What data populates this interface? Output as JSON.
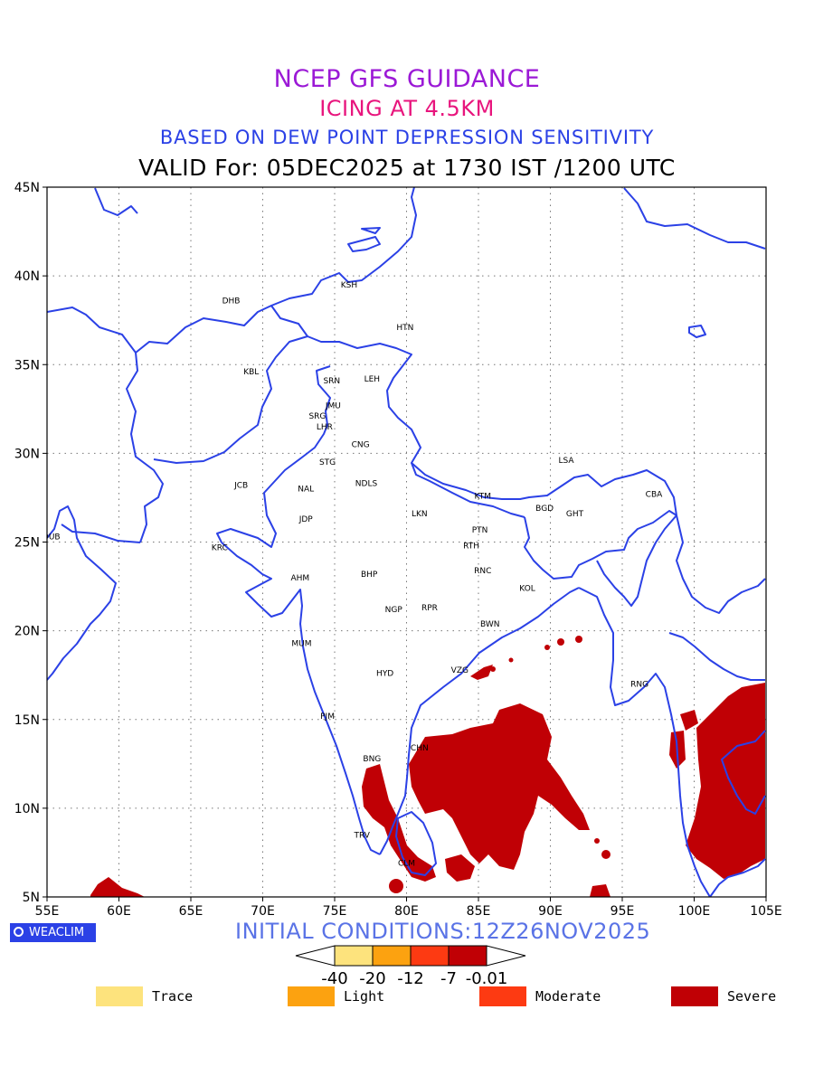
{
  "titles": {
    "line1": "NCEP GFS GUIDANCE",
    "line2": "ICING AT 4.5KM",
    "line3": "BASED ON DEW POINT DEPRESSION SENSITIVITY",
    "line4": "VALID For: 05DEC2025 at 1730 IST /1200 UTC"
  },
  "map": {
    "lon_ticks": [
      "55E",
      "60E",
      "65E",
      "70E",
      "75E",
      "80E",
      "85E",
      "90E",
      "95E",
      "100E",
      "105E"
    ],
    "lat_ticks": [
      "45N",
      "40N",
      "35N",
      "30N",
      "25N",
      "20N",
      "15N",
      "10N",
      "5N"
    ],
    "stations": [
      {
        "code": "KSH",
        "lon": 76.0,
        "lat": 39.5
      },
      {
        "code": "DHB",
        "lon": 67.8,
        "lat": 38.6
      },
      {
        "code": "HTN",
        "lon": 79.9,
        "lat": 37.1
      },
      {
        "code": "KBL",
        "lon": 69.2,
        "lat": 34.6
      },
      {
        "code": "SRN",
        "lon": 74.8,
        "lat": 34.1
      },
      {
        "code": "LEH",
        "lon": 77.6,
        "lat": 34.2
      },
      {
        "code": "JMU",
        "lon": 74.9,
        "lat": 32.7
      },
      {
        "code": "SRG",
        "lon": 73.8,
        "lat": 32.1
      },
      {
        "code": "LHR",
        "lon": 74.3,
        "lat": 31.5
      },
      {
        "code": "CNG",
        "lon": 76.8,
        "lat": 30.5
      },
      {
        "code": "STG",
        "lon": 74.5,
        "lat": 29.5
      },
      {
        "code": "JCB",
        "lon": 68.5,
        "lat": 28.2
      },
      {
        "code": "NAL",
        "lon": 73.0,
        "lat": 28.0
      },
      {
        "code": "NDLS",
        "lon": 77.2,
        "lat": 28.3
      },
      {
        "code": "LSA",
        "lon": 91.1,
        "lat": 29.6
      },
      {
        "code": "CBA",
        "lon": 97.2,
        "lat": 27.7
      },
      {
        "code": "KTM",
        "lon": 85.3,
        "lat": 27.6
      },
      {
        "code": "BGD",
        "lon": 89.6,
        "lat": 26.9
      },
      {
        "code": "GHT",
        "lon": 91.7,
        "lat": 26.6
      },
      {
        "code": "JDP",
        "lon": 73.0,
        "lat": 26.3
      },
      {
        "code": "LKN",
        "lon": 80.9,
        "lat": 26.6
      },
      {
        "code": "PTN",
        "lon": 85.1,
        "lat": 25.7
      },
      {
        "code": "DUB",
        "lon": 55.3,
        "lat": 25.3
      },
      {
        "code": "RTH",
        "lon": 84.5,
        "lat": 24.8
      },
      {
        "code": "KRC",
        "lon": 67.0,
        "lat": 24.7
      },
      {
        "code": "AHM",
        "lon": 72.6,
        "lat": 23.0
      },
      {
        "code": "BHP",
        "lon": 77.4,
        "lat": 23.2
      },
      {
        "code": "RNC",
        "lon": 85.3,
        "lat": 23.4
      },
      {
        "code": "KOL",
        "lon": 88.4,
        "lat": 22.4
      },
      {
        "code": "NGP",
        "lon": 79.1,
        "lat": 21.2
      },
      {
        "code": "RPR",
        "lon": 81.6,
        "lat": 21.3
      },
      {
        "code": "BWN",
        "lon": 85.8,
        "lat": 20.4
      },
      {
        "code": "MUM",
        "lon": 72.7,
        "lat": 19.3
      },
      {
        "code": "HYD",
        "lon": 78.5,
        "lat": 17.6
      },
      {
        "code": "VZG",
        "lon": 83.7,
        "lat": 17.8
      },
      {
        "code": "RNG",
        "lon": 96.2,
        "lat": 17.0
      },
      {
        "code": "PJM",
        "lon": 74.5,
        "lat": 15.2
      },
      {
        "code": "CHN",
        "lon": 80.9,
        "lat": 13.4
      },
      {
        "code": "BNG",
        "lon": 77.6,
        "lat": 12.8
      },
      {
        "code": "TRV",
        "lon": 76.9,
        "lat": 8.5
      },
      {
        "code": "CLM",
        "lon": 80.0,
        "lat": 6.9
      }
    ]
  },
  "footer": {
    "brand": "WEACLIM",
    "initial_conditions": "INITIAL CONDITIONS:12Z26NOV2025"
  },
  "colorbar": {
    "colors": [
      "#fde37d",
      "#fca210",
      "#fd3a12",
      "#c00005"
    ],
    "tick_labels": [
      "-40",
      "-20",
      "-12",
      "-7",
      "-0.01"
    ]
  },
  "legend": [
    {
      "label": "Trace",
      "color": "#fde37d"
    },
    {
      "label": "Light",
      "color": "#fca210"
    },
    {
      "label": "Moderate",
      "color": "#fd3a12"
    },
    {
      "label": "Severe",
      "color": "#c00005"
    }
  ],
  "colors": {
    "coast": "#2b41e6",
    "severe": "#c00005"
  }
}
